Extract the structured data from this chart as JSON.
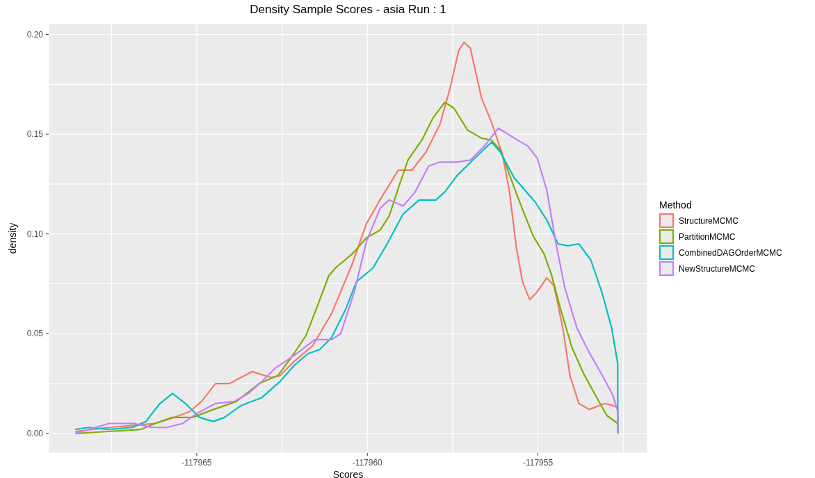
{
  "chart_data": {
    "type": "line",
    "title": "Density Sample Scores - asia Run : 1",
    "xlabel": "Scores",
    "ylabel": "density",
    "legend_title": "Method",
    "legend": "right",
    "grid": true,
    "xlim": [
      -117969.34,
      -117951.79
    ],
    "xticks": [
      {
        "value": -117967.5,
        "label": null
      },
      {
        "value": -117965,
        "label": "-117965"
      },
      {
        "value": -117962.5,
        "label": null
      },
      {
        "value": -117960,
        "label": "-117960"
      },
      {
        "value": -117957.5,
        "label": null
      },
      {
        "value": -117955,
        "label": "-117955"
      },
      {
        "value": -117952.5,
        "label": null
      }
    ],
    "ylim": [
      -0.0098,
      0.2054
    ],
    "yticks": [
      {
        "value": 0,
        "label": "0.00"
      },
      {
        "value": 0.025,
        "label": null
      },
      {
        "value": 0.05,
        "label": "0.05"
      },
      {
        "value": 0.075,
        "label": null
      },
      {
        "value": 0.1,
        "label": "0.10"
      },
      {
        "value": 0.125,
        "label": null
      },
      {
        "value": 0.15,
        "label": "0.15"
      },
      {
        "value": 0.175,
        "label": null
      },
      {
        "value": 0.2,
        "label": "0.20"
      }
    ],
    "series": [
      {
        "name": "StructureMCMC",
        "color": "#f8766d",
        "x": [
          -117968.56,
          -117967.57,
          -117966.89,
          -117966.22,
          -117965.67,
          -117965.2,
          -117964.86,
          -117964.45,
          -117964.04,
          -117963.37,
          -117962.82,
          -117962.56,
          -117962.15,
          -117961.6,
          -117961.05,
          -117960.44,
          -117960.03,
          -117959.56,
          -117959.09,
          -117958.69,
          -117958.28,
          -117957.87,
          -117957.59,
          -117957.32,
          -117957.16,
          -117956.98,
          -117956.65,
          -117956.36,
          -117956.04,
          -117955.84,
          -117955.63,
          -117955.45,
          -117955.24,
          -117955.02,
          -117954.74,
          -117954.53,
          -117954.27,
          -117954.06,
          -117953.8,
          -117953.49,
          -117953.04,
          -117952.8,
          -117952.66,
          -117952.66
        ],
        "values": [
          0.001,
          0.003,
          0.004,
          0.005,
          0.008,
          0.011,
          0.016,
          0.025,
          0.025,
          0.031,
          0.028,
          0.029,
          0.036,
          0.044,
          0.06,
          0.085,
          0.105,
          0.119,
          0.132,
          0.132,
          0.141,
          0.155,
          0.172,
          0.192,
          0.196,
          0.193,
          0.168,
          0.156,
          0.14,
          0.122,
          0.093,
          0.076,
          0.067,
          0.071,
          0.078,
          0.074,
          0.053,
          0.029,
          0.015,
          0.012,
          0.015,
          0.014,
          0.013,
          0
        ]
      },
      {
        "name": "PartitionMCMC",
        "color": "#7cae00",
        "x": [
          -117968.56,
          -117967.57,
          -117966.63,
          -117966.22,
          -117965.73,
          -117965.12,
          -117964.51,
          -117963.84,
          -117963.17,
          -117962.62,
          -117962.15,
          -117961.8,
          -117961.46,
          -117961.13,
          -117960.93,
          -117960.44,
          -117960.03,
          -117959.62,
          -117959.36,
          -117959.09,
          -117958.81,
          -117958.4,
          -117958.08,
          -117957.73,
          -117957.46,
          -117957.06,
          -117956.65,
          -117956.36,
          -117956.1,
          -117955.69,
          -117955.49,
          -117955.14,
          -117954.82,
          -117954.61,
          -117954.33,
          -117954.0,
          -117953.66,
          -117953.31,
          -117952.98,
          -117952.66,
          -117952.66
        ],
        "values": [
          0.0,
          0.001,
          0.002,
          0.005,
          0.008,
          0.008,
          0.012,
          0.016,
          0.025,
          0.029,
          0.04,
          0.049,
          0.064,
          0.079,
          0.083,
          0.09,
          0.098,
          0.102,
          0.109,
          0.123,
          0.137,
          0.147,
          0.158,
          0.166,
          0.163,
          0.152,
          0.148,
          0.147,
          0.142,
          0.123,
          0.114,
          0.099,
          0.09,
          0.08,
          0.062,
          0.043,
          0.03,
          0.019,
          0.009,
          0.005,
          0
        ]
      },
      {
        "name": "CombinedDAGOrderMCMC",
        "color": "#00bfc4",
        "x": [
          -117968.56,
          -117968.18,
          -117967.57,
          -117966.89,
          -117966.49,
          -117966.08,
          -117965.71,
          -117965.33,
          -117964.92,
          -117964.51,
          -117964.19,
          -117963.7,
          -117963.09,
          -117962.56,
          -117962.15,
          -117961.74,
          -117961.4,
          -117961.05,
          -117960.64,
          -117960.32,
          -117959.83,
          -117959.42,
          -117958.95,
          -117958.48,
          -117957.99,
          -117957.73,
          -117957.38,
          -117956.91,
          -117956.36,
          -117956.1,
          -117955.69,
          -117955.08,
          -117954.74,
          -117954.41,
          -117954.12,
          -117953.8,
          -117953.45,
          -117953.11,
          -117952.84,
          -117952.66,
          -117952.66
        ],
        "values": [
          0.002,
          0.003,
          0.002,
          0.003,
          0.006,
          0.015,
          0.02,
          0.015,
          0.008,
          0.006,
          0.008,
          0.014,
          0.018,
          0.026,
          0.034,
          0.04,
          0.042,
          0.048,
          0.062,
          0.076,
          0.083,
          0.095,
          0.11,
          0.117,
          0.117,
          0.121,
          0.129,
          0.137,
          0.146,
          0.141,
          0.128,
          0.116,
          0.107,
          0.095,
          0.094,
          0.095,
          0.087,
          0.07,
          0.053,
          0.035,
          0
        ]
      },
      {
        "name": "NewStructureMCMC",
        "color": "#c77cff",
        "x": [
          -117968.56,
          -117967.57,
          -117966.83,
          -117966.34,
          -117965.88,
          -117965.41,
          -117965.0,
          -117964.45,
          -117963.9,
          -117963.49,
          -117963.09,
          -117962.68,
          -117962.15,
          -117961.54,
          -117961.05,
          -117960.78,
          -117960.38,
          -117960.03,
          -117959.62,
          -117959.36,
          -117958.95,
          -117958.6,
          -117958.2,
          -117957.87,
          -117957.38,
          -117956.98,
          -117956.57,
          -117956.16,
          -117955.69,
          -117955.29,
          -117955.02,
          -117954.74,
          -117954.47,
          -117954.21,
          -117953.86,
          -117953.51,
          -117953.11,
          -117952.8,
          -117952.66,
          -117952.66
        ],
        "values": [
          0.0,
          0.005,
          0.005,
          0.003,
          0.003,
          0.005,
          0.01,
          0.015,
          0.016,
          0.02,
          0.026,
          0.033,
          0.039,
          0.047,
          0.047,
          0.05,
          0.071,
          0.096,
          0.113,
          0.117,
          0.114,
          0.121,
          0.134,
          0.136,
          0.136,
          0.137,
          0.144,
          0.153,
          0.148,
          0.144,
          0.138,
          0.122,
          0.095,
          0.073,
          0.053,
          0.041,
          0.029,
          0.019,
          0.011,
          0
        ]
      }
    ]
  }
}
